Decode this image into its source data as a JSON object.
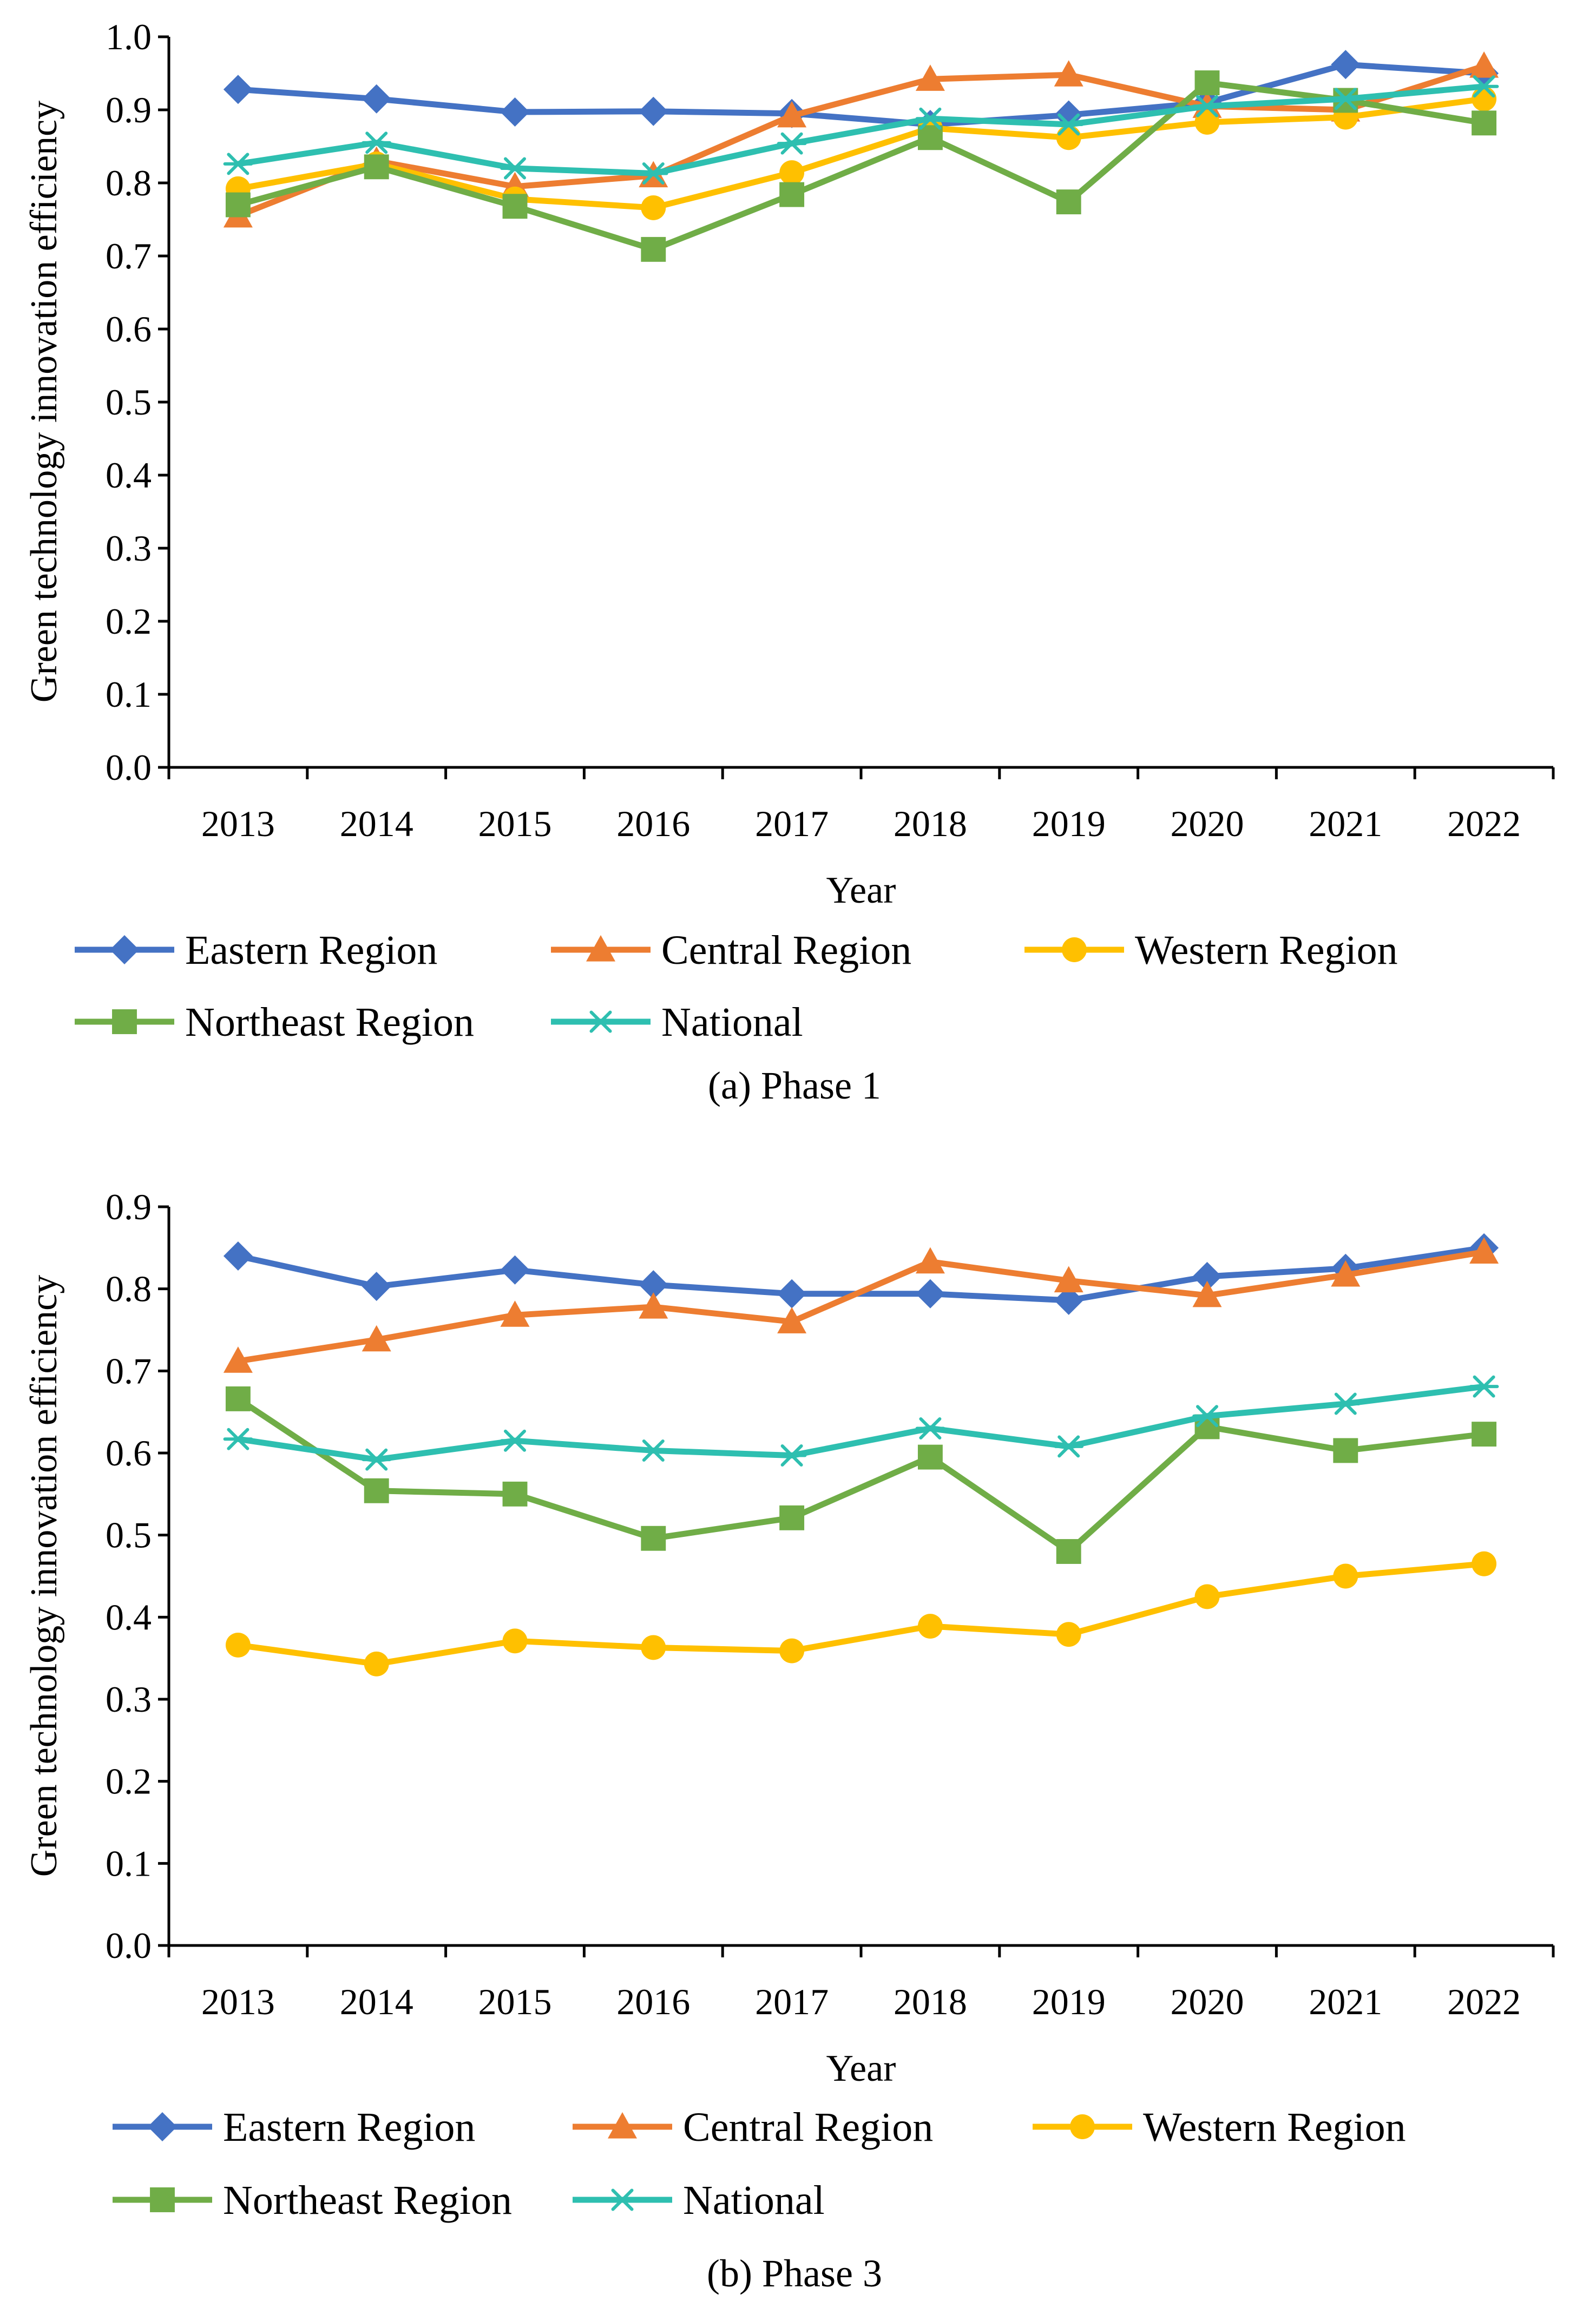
{
  "chart_data": [
    {
      "type": "line",
      "caption": "(a) Phase 1",
      "xlabel": "Year",
      "ylabel": "Green technology innovation efficiency",
      "ylim": [
        0.0,
        1.0
      ],
      "yticks": [
        "0.0",
        "0.1",
        "0.2",
        "0.3",
        "0.4",
        "0.5",
        "0.6",
        "0.7",
        "0.8",
        "0.9",
        "1.0"
      ],
      "categories": [
        "2013",
        "2014",
        "2015",
        "2016",
        "2017",
        "2018",
        "2019",
        "2020",
        "2021",
        "2022"
      ],
      "legend_position": "bottom",
      "series": [
        {
          "name": "Eastern Region",
          "color": "#4472C4",
          "marker": "diamond",
          "values": [
            0.928,
            0.915,
            0.897,
            0.898,
            0.895,
            0.88,
            0.893,
            0.91,
            0.962,
            0.95
          ]
        },
        {
          "name": "Central Region",
          "color": "#ED7D31",
          "marker": "triangle",
          "values": [
            0.755,
            0.83,
            0.795,
            0.81,
            0.892,
            0.942,
            0.948,
            0.905,
            0.9,
            0.96
          ]
        },
        {
          "name": "Western Region",
          "color": "#FFC000",
          "marker": "circle",
          "values": [
            0.792,
            0.826,
            0.778,
            0.766,
            0.814,
            0.875,
            0.862,
            0.883,
            0.89,
            0.915
          ]
        },
        {
          "name": "Northeast Region",
          "color": "#70AD47",
          "marker": "square",
          "values": [
            0.77,
            0.822,
            0.768,
            0.709,
            0.784,
            0.862,
            0.774,
            0.937,
            0.913,
            0.882
          ]
        },
        {
          "name": "National",
          "color": "#2EBFB0",
          "marker": "asterisk",
          "values": [
            0.826,
            0.855,
            0.82,
            0.813,
            0.854,
            0.888,
            0.88,
            0.905,
            0.915,
            0.932
          ]
        }
      ]
    },
    {
      "type": "line",
      "caption": "(b) Phase 3",
      "xlabel": "Year",
      "ylabel": "Green technology innovation efficiency",
      "ylim": [
        0.0,
        0.9
      ],
      "yticks": [
        "0.0",
        "0.1",
        "0.2",
        "0.3",
        "0.4",
        "0.5",
        "0.6",
        "0.7",
        "0.8",
        "0.9"
      ],
      "categories": [
        "2013",
        "2014",
        "2015",
        "2016",
        "2017",
        "2018",
        "2019",
        "2020",
        "2021",
        "2022"
      ],
      "legend_position": "bottom",
      "series": [
        {
          "name": "Eastern Region",
          "color": "#4472C4",
          "marker": "diamond",
          "values": [
            0.84,
            0.803,
            0.823,
            0.805,
            0.794,
            0.794,
            0.786,
            0.815,
            0.825,
            0.85
          ]
        },
        {
          "name": "Central Region",
          "color": "#ED7D31",
          "marker": "triangle",
          "values": [
            0.712,
            0.738,
            0.768,
            0.778,
            0.76,
            0.833,
            0.81,
            0.792,
            0.817,
            0.845
          ]
        },
        {
          "name": "Western Region",
          "color": "#FFC000",
          "marker": "circle",
          "values": [
            0.366,
            0.343,
            0.371,
            0.363,
            0.359,
            0.389,
            0.379,
            0.425,
            0.45,
            0.465
          ]
        },
        {
          "name": "Northeast Region",
          "color": "#70AD47",
          "marker": "square",
          "values": [
            0.666,
            0.554,
            0.55,
            0.496,
            0.521,
            0.595,
            0.48,
            0.632,
            0.603,
            0.623
          ]
        },
        {
          "name": "National",
          "color": "#2EBFB0",
          "marker": "asterisk",
          "values": [
            0.617,
            0.592,
            0.615,
            0.603,
            0.597,
            0.63,
            0.608,
            0.645,
            0.66,
            0.681
          ]
        }
      ]
    }
  ]
}
